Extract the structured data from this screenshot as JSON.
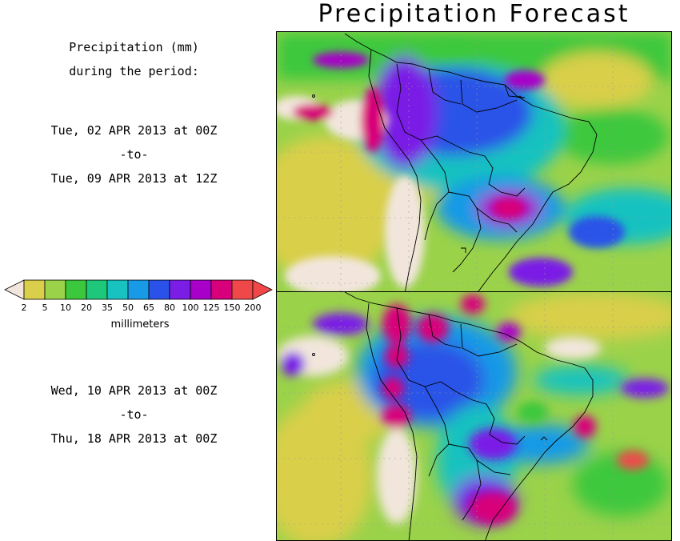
{
  "title": "Precipitation Forecast",
  "period_header": [
    "Precipitation (mm)",
    "during the period:"
  ],
  "period1": {
    "start": "Tue, 02 APR 2013 at 00Z",
    "sep": "-to-",
    "end": "Tue, 09 APR 2013 at 12Z"
  },
  "period2": {
    "start": "Wed, 10 APR 2013 at 00Z",
    "sep": "-to-",
    "end": "Thu, 18 APR 2013 at 00Z"
  },
  "legend": {
    "unit": "millimeters",
    "bins": [
      {
        "label": "2",
        "color": "#d9cf4a"
      },
      {
        "label": "5",
        "color": "#9ad24a"
      },
      {
        "label": "10",
        "color": "#3cc83c"
      },
      {
        "label": "20",
        "color": "#1ec87a"
      },
      {
        "label": "35",
        "color": "#18c2c0"
      },
      {
        "label": "50",
        "color": "#199ae6"
      },
      {
        "label": "65",
        "color": "#2a52e8"
      },
      {
        "label": "80",
        "color": "#7a1ee6"
      },
      {
        "label": "100",
        "color": "#a800c8"
      },
      {
        "label": "125",
        "color": "#d8007a"
      },
      {
        "label": "150",
        "color": "#f04848"
      },
      {
        "label": "200",
        "color": "#f04848"
      }
    ],
    "low_color": "#f2e6dc",
    "high_color": "#f04848"
  }
}
